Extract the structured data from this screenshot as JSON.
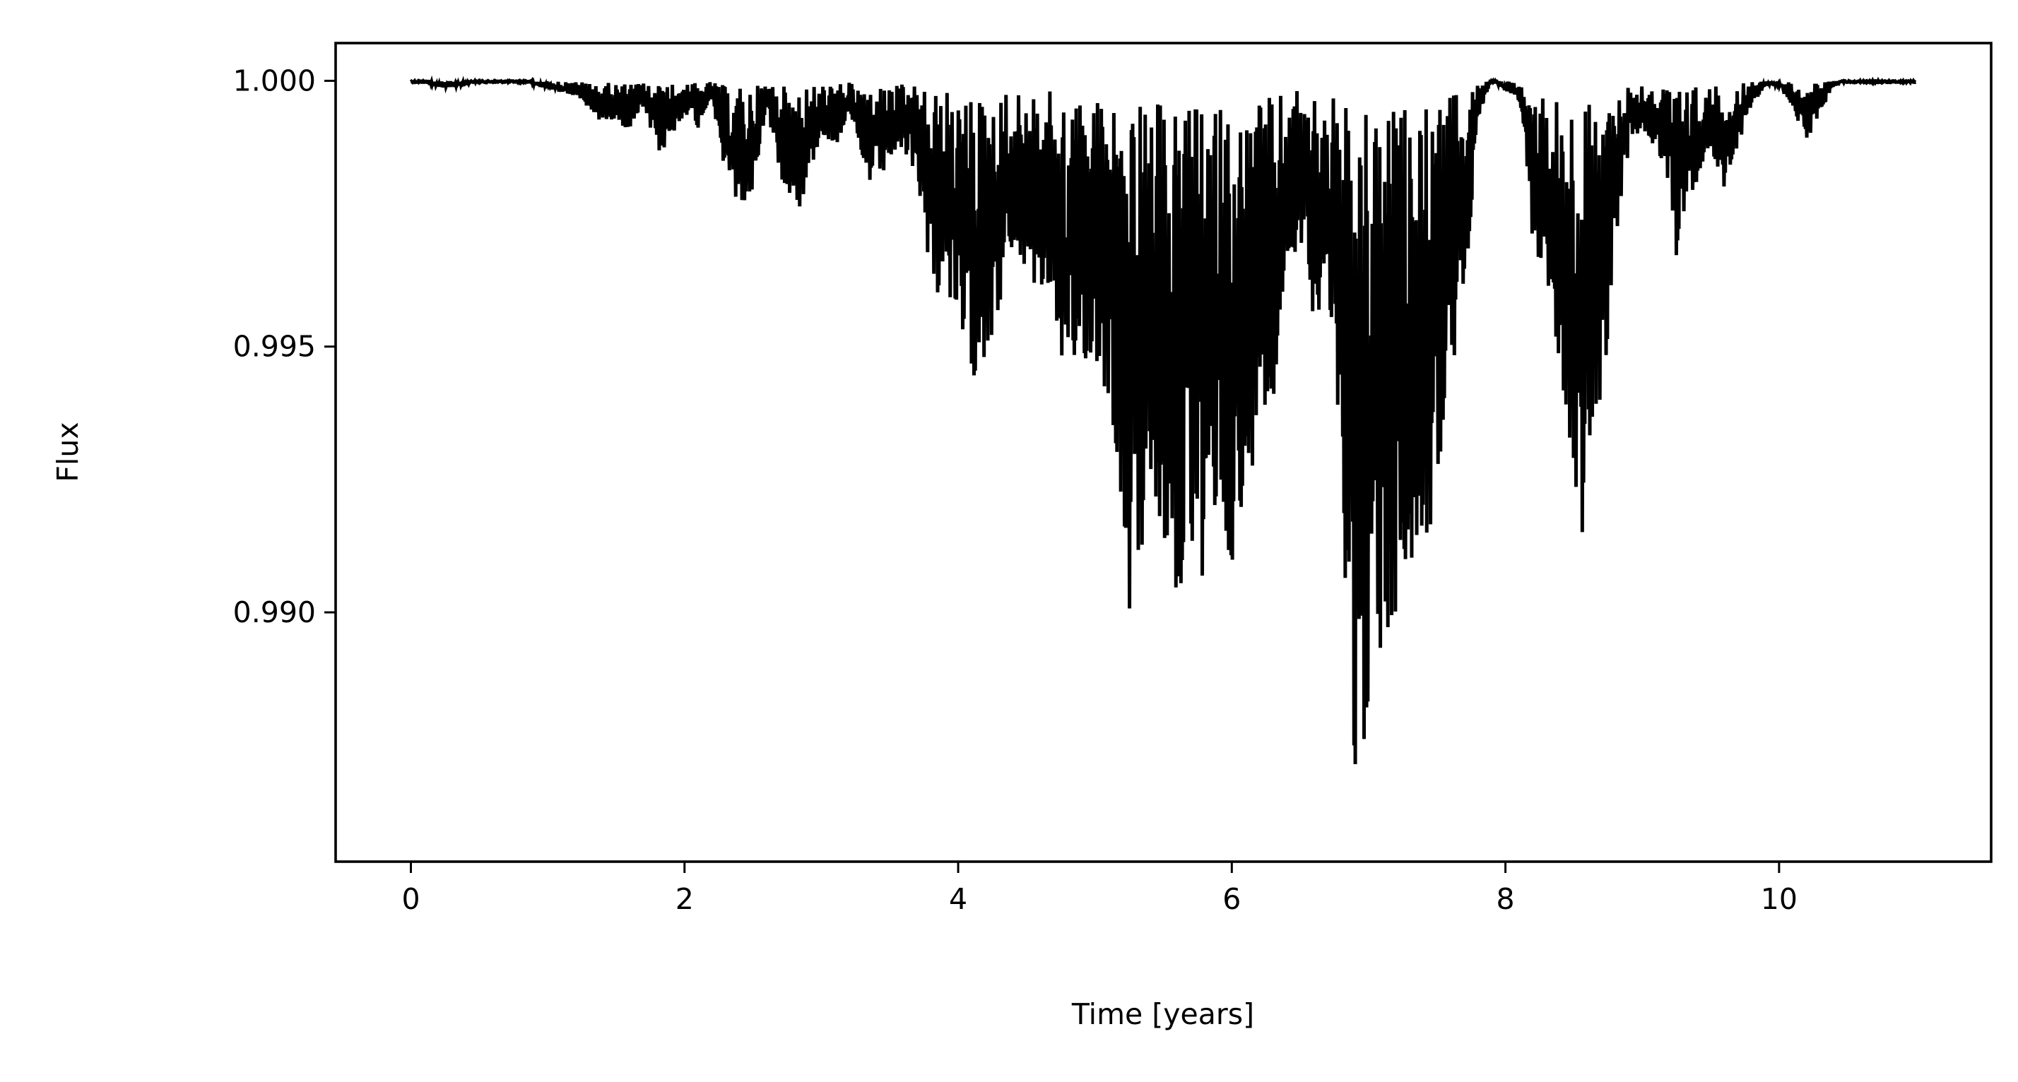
{
  "chart_data": {
    "type": "line",
    "title": "",
    "xlabel": "Time [years]",
    "ylabel": "Flux",
    "xlim": [
      -0.55,
      11.55
    ],
    "ylim": [
      0.98531,
      1.00071
    ],
    "x_ticks": [
      0,
      2,
      4,
      6,
      8,
      10
    ],
    "x_tick_labels": [
      "0",
      "2",
      "4",
      "6",
      "8",
      "10"
    ],
    "y_ticks": [
      0.99,
      0.995,
      1.0
    ],
    "y_tick_labels": [
      "0.990",
      "0.995",
      "1.000"
    ],
    "grid": false,
    "legend": "none",
    "line_color": "#000000",
    "series": [
      {
        "x": [
          0.0,
          0.25,
          0.5,
          0.75,
          1.0,
          1.2,
          1.4,
          1.5,
          1.6,
          1.7,
          1.8,
          1.9,
          2.0,
          2.1,
          2.2,
          2.3,
          2.35,
          2.45,
          2.5,
          2.6,
          2.7,
          2.8,
          2.85,
          3.0,
          3.1,
          3.2,
          3.3,
          3.4,
          3.5,
          3.6,
          3.7,
          3.8,
          3.85,
          3.9,
          4.0,
          4.05,
          4.1,
          4.2,
          4.3,
          4.4,
          4.5,
          4.6,
          4.7,
          4.75,
          4.8,
          4.9,
          5.0,
          5.1,
          5.2,
          5.25,
          5.3,
          5.4,
          5.5,
          5.55,
          5.6,
          5.7,
          5.8,
          5.9,
          6.0,
          6.1,
          6.15,
          6.2,
          6.3,
          6.4,
          6.5,
          6.6,
          6.7,
          6.8,
          6.85,
          6.9,
          6.95,
          7.0,
          7.1,
          7.2,
          7.3,
          7.4,
          7.5,
          7.6,
          7.7,
          7.8,
          7.9,
          8.0,
          8.1,
          8.2,
          8.3,
          8.4,
          8.5,
          8.55,
          8.6,
          8.7,
          8.8,
          8.9,
          9.0,
          9.1,
          9.2,
          9.25,
          9.3,
          9.4,
          9.5,
          9.6,
          9.7,
          9.8,
          9.9,
          10.0,
          10.1,
          10.2,
          10.3,
          10.4,
          10.6,
          10.8,
          11.0
        ],
        "y": [
          1.0,
          0.99985,
          0.99995,
          1.0,
          0.99985,
          0.9997,
          0.9992,
          0.9993,
          0.999,
          0.9995,
          0.9986,
          0.9988,
          0.9994,
          0.9991,
          0.9997,
          0.9981,
          0.9978,
          0.9975,
          0.9979,
          0.9995,
          0.9982,
          0.9977,
          0.9976,
          0.999,
          0.9987,
          0.9994,
          0.9982,
          0.9979,
          0.9985,
          0.9986,
          0.9982,
          0.9963,
          0.9959,
          0.9965,
          0.9948,
          0.9947,
          0.9944,
          0.9947,
          0.9957,
          0.9965,
          0.9964,
          0.9958,
          0.9962,
          0.994,
          0.9935,
          0.9948,
          0.9945,
          0.994,
          0.9919,
          0.9898,
          0.9907,
          0.9915,
          0.9913,
          0.9902,
          0.9898,
          0.991,
          0.9903,
          0.9918,
          0.9909,
          0.9906,
          0.9927,
          0.9942,
          0.9935,
          0.9964,
          0.997,
          0.9955,
          0.996,
          0.9921,
          0.9895,
          0.9869,
          0.9861,
          0.9885,
          0.9888,
          0.9898,
          0.9904,
          0.991,
          0.992,
          0.9942,
          0.9958,
          0.9993,
          1.0,
          0.9998,
          0.9996,
          0.9969,
          0.9963,
          0.9941,
          0.9925,
          0.9912,
          0.9921,
          0.9937,
          0.9968,
          0.9987,
          0.9991,
          0.9986,
          0.998,
          0.9965,
          0.9975,
          0.9981,
          0.9983,
          0.9978,
          0.9988,
          0.9995,
          0.9999,
          0.9999,
          0.9995,
          0.9988,
          0.9994,
          0.9999,
          1.0,
          1.0,
          1.0
        ]
      }
    ]
  }
}
